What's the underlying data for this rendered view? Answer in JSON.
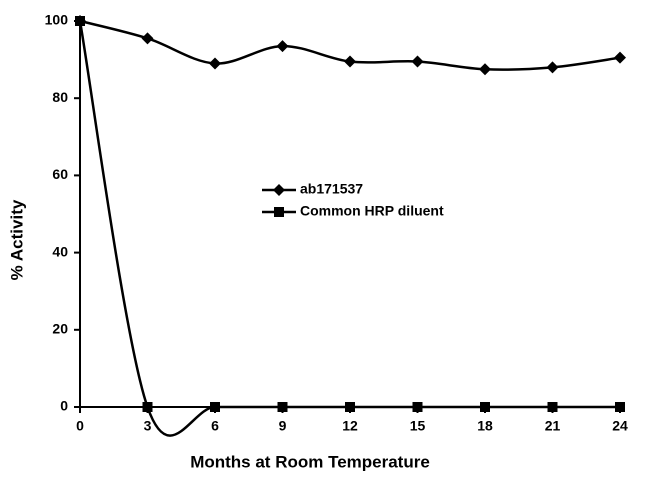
{
  "chart_data": {
    "type": "line",
    "x_label": "Months at Room Temperature",
    "y_label": "% Activity",
    "x": [
      0,
      3,
      6,
      9,
      12,
      15,
      18,
      21,
      24
    ],
    "series": [
      {
        "name": "ab171537",
        "color": "#000000",
        "marker": "diamond",
        "values": [
          100,
          95.5,
          89,
          93.5,
          89.5,
          89.5,
          87.5,
          88,
          90.5
        ]
      },
      {
        "name": "Common HRP diluent",
        "color": "#000000",
        "marker": "square",
        "values": [
          100,
          0,
          0,
          0,
          0,
          0,
          0,
          0,
          0
        ]
      }
    ],
    "xlim": [
      0,
      24
    ],
    "xticks": [
      0,
      3,
      6,
      9,
      12,
      15,
      18,
      21,
      24
    ],
    "ylim": [
      0,
      100
    ],
    "yticks": [
      0,
      20,
      40,
      60,
      80,
      100
    ],
    "grid": false,
    "smooth": true
  }
}
